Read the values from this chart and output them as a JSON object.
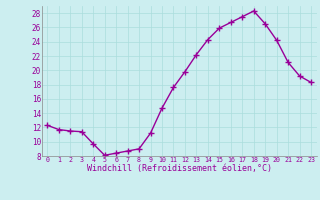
{
  "x": [
    0,
    1,
    2,
    3,
    4,
    5,
    6,
    7,
    8,
    9,
    10,
    11,
    12,
    13,
    14,
    15,
    16,
    17,
    18,
    19,
    20,
    21,
    22,
    23
  ],
  "y": [
    12.3,
    11.7,
    11.5,
    11.4,
    9.7,
    8.1,
    8.4,
    8.7,
    9.0,
    11.2,
    14.7,
    17.6,
    19.8,
    22.2,
    24.3,
    25.9,
    26.7,
    27.5,
    28.3,
    26.5,
    24.2,
    21.1,
    19.2,
    18.3
  ],
  "line_color": "#990099",
  "marker": "+",
  "marker_size": 4,
  "marker_linewidth": 1.0,
  "bg_color": "#cceef0",
  "grid_color": "#aadddd",
  "xlabel": "Windchill (Refroidissement éolien,°C)",
  "xlabel_color": "#990099",
  "tick_color": "#990099",
  "ylim": [
    8,
    29
  ],
  "yticks": [
    8,
    10,
    12,
    14,
    16,
    18,
    20,
    22,
    24,
    26,
    28
  ],
  "xlim": [
    -0.5,
    23.5
  ],
  "xlabel_fontsize": 6.0,
  "ytick_fontsize": 5.5,
  "xtick_fontsize": 4.8
}
